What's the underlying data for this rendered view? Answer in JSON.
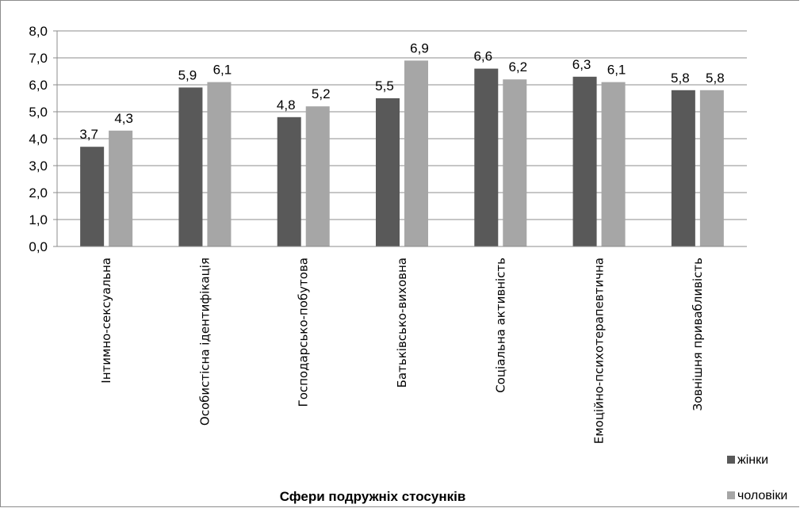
{
  "chart_data": {
    "type": "bar",
    "xlabel": "Сфери подружніх стосунків",
    "ylabel": "",
    "ylim": [
      0,
      8
    ],
    "ytick_step": 1,
    "ytick_labels": [
      "0,0",
      "1,0",
      "2,0",
      "3,0",
      "4,0",
      "5,0",
      "6,0",
      "7,0",
      "8,0"
    ],
    "categories": [
      "Інтимно-сексуальна",
      "Особистісна ідентифікація",
      "Господарсько-побутова",
      "Батьківсько-виховна",
      "Соціальна активність",
      "Емоційно-психотерапевтична",
      "Зовнішня привабливість"
    ],
    "series": [
      {
        "name": "жінки",
        "color": "#595959",
        "values": [
          3.7,
          5.9,
          4.8,
          5.5,
          6.6,
          6.3,
          5.8
        ]
      },
      {
        "name": "чоловіки",
        "color": "#a6a6a6",
        "values": [
          4.3,
          6.1,
          5.2,
          6.9,
          6.2,
          6.1,
          5.8
        ]
      }
    ],
    "grid": true,
    "legend_position": "bottom-right"
  }
}
